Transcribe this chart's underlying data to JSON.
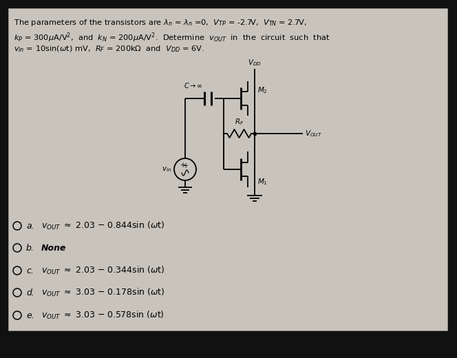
{
  "bg_color": "#111111",
  "panel_color": "#c8c4bc",
  "panel_border": "#888888",
  "text_color": "#000000",
  "circuit_line_color": "#000000",
  "figsize": [
    6.64,
    5.2
  ],
  "dpi": 100,
  "options_raw": [
    {
      "label": "a.",
      "vout": "v_OUT",
      "expr": " ≈ 2.03 − 0.844sin (ωt)"
    },
    {
      "label": "b.",
      "vout": "",
      "expr": "None"
    },
    {
      "label": "c.",
      "vout": "v_OUT",
      "expr": " ≈ 2.03 − 0.344sin (ωt)"
    },
    {
      "label": "d.",
      "vout": "v_OUT",
      "expr": " ≈ 3.03 − 0.178sin (ωt)"
    },
    {
      "label": "e.",
      "vout": "v_OUT",
      "expr": " ≈ 3.03 − 0.578sin (ωt)"
    }
  ]
}
